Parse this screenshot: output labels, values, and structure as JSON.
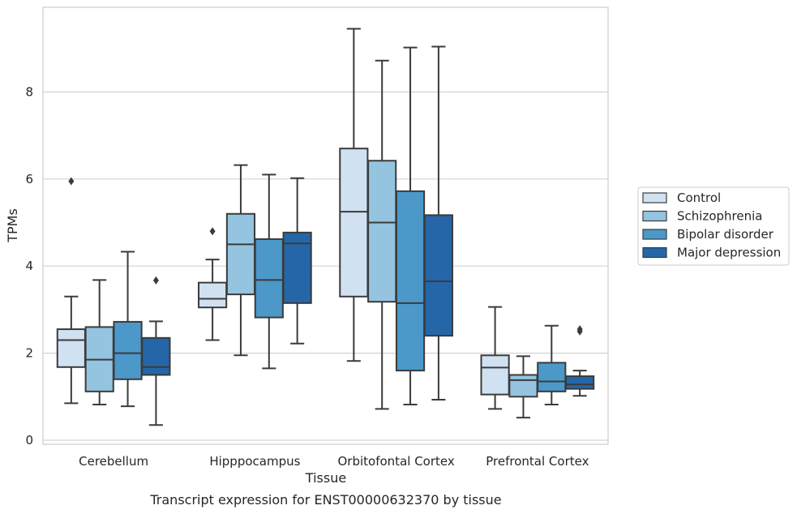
{
  "chart_data": {
    "type": "box",
    "title": "",
    "caption": "Transcript expression for ENST00000632370 by tissue",
    "xlabel": "Tissue",
    "ylabel": "TPMs",
    "ylim": [
      -0.1,
      9.9
    ],
    "yticks": [
      0,
      2,
      4,
      6,
      8
    ],
    "grid": "horizontal",
    "legend_position": "right",
    "categories": [
      "Cerebellum",
      "Hipppocampus",
      "Orbitofontal Cortex",
      "Prefrontal Cortex"
    ],
    "series": [
      {
        "name": "Control",
        "color": "#d0e1f2",
        "boxes": [
          {
            "whislo": 0.85,
            "q1": 1.68,
            "med": 2.3,
            "q3": 2.55,
            "whishi": 3.3,
            "fliers": [
              5.95
            ]
          },
          {
            "whislo": 2.3,
            "q1": 3.05,
            "med": 3.25,
            "q3": 3.62,
            "whishi": 4.15,
            "fliers": [
              4.8
            ]
          },
          {
            "whislo": 1.82,
            "q1": 3.3,
            "med": 5.25,
            "q3": 6.7,
            "whishi": 9.45,
            "fliers": []
          },
          {
            "whislo": 0.72,
            "q1": 1.05,
            "med": 1.67,
            "q3": 1.95,
            "whishi": 3.06,
            "fliers": []
          }
        ]
      },
      {
        "name": "Schizophrenia",
        "color": "#94c4df",
        "boxes": [
          {
            "whislo": 0.82,
            "q1": 1.12,
            "med": 1.85,
            "q3": 2.6,
            "whishi": 3.68,
            "fliers": []
          },
          {
            "whislo": 1.95,
            "q1": 3.35,
            "med": 4.5,
            "q3": 5.2,
            "whishi": 6.32,
            "fliers": []
          },
          {
            "whislo": 0.72,
            "q1": 3.18,
            "med": 5.0,
            "q3": 6.42,
            "whishi": 8.72,
            "fliers": []
          },
          {
            "whislo": 0.52,
            "q1": 1.0,
            "med": 1.38,
            "q3": 1.5,
            "whishi": 1.93,
            "fliers": []
          }
        ]
      },
      {
        "name": "Bipolar disorder",
        "color": "#4b98c9",
        "boxes": [
          {
            "whislo": 0.78,
            "q1": 1.4,
            "med": 2.0,
            "q3": 2.72,
            "whishi": 4.33,
            "fliers": []
          },
          {
            "whislo": 1.65,
            "q1": 2.82,
            "med": 3.68,
            "q3": 4.62,
            "whishi": 6.1,
            "fliers": []
          },
          {
            "whislo": 0.82,
            "q1": 1.6,
            "med": 3.15,
            "q3": 5.72,
            "whishi": 9.02,
            "fliers": []
          },
          {
            "whislo": 0.82,
            "q1": 1.12,
            "med": 1.35,
            "q3": 1.78,
            "whishi": 2.63,
            "fliers": []
          }
        ]
      },
      {
        "name": "Major depression",
        "color": "#2566a8",
        "boxes": [
          {
            "whislo": 0.35,
            "q1": 1.5,
            "med": 1.68,
            "q3": 2.35,
            "whishi": 2.73,
            "fliers": [
              3.67
            ]
          },
          {
            "whislo": 2.22,
            "q1": 3.15,
            "med": 4.52,
            "q3": 4.77,
            "whishi": 6.02,
            "fliers": []
          },
          {
            "whislo": 0.93,
            "q1": 2.4,
            "med": 3.65,
            "q3": 5.17,
            "whishi": 9.04,
            "fliers": []
          },
          {
            "whislo": 1.02,
            "q1": 1.18,
            "med": 1.28,
            "q3": 1.47,
            "whishi": 1.6,
            "fliers": [
              2.5,
              2.55
            ]
          }
        ]
      }
    ]
  }
}
